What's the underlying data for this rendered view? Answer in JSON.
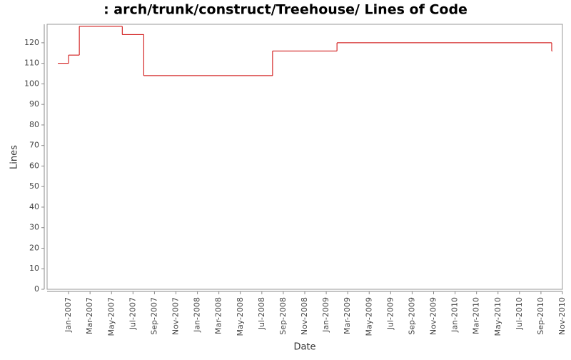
{
  "chart_data": {
    "type": "step",
    "title": ": arch/trunk/construct/Treehouse/ Lines of Code",
    "x_label": "Date",
    "y_label": "Lines",
    "x": [
      "2006-12",
      "2007-01",
      "2007-02",
      "2007-06",
      "2007-08",
      "2008-08",
      "2009-02",
      "2010-10"
    ],
    "series": [
      {
        "name": "Lines",
        "color": "#cc0000",
        "values": [
          110,
          114,
          128,
          124,
          104,
          116,
          120,
          116
        ]
      }
    ],
    "xlim": [
      "2006-11",
      "2010-11"
    ],
    "xticks": [
      {
        "value": "2007-01",
        "label": "Jan-2007"
      },
      {
        "value": "2007-03",
        "label": "Mar-2007"
      },
      {
        "value": "2007-05",
        "label": "May-2007"
      },
      {
        "value": "2007-07",
        "label": "Jul-2007"
      },
      {
        "value": "2007-09",
        "label": "Sep-2007"
      },
      {
        "value": "2007-11",
        "label": "Nov-2007"
      },
      {
        "value": "2008-01",
        "label": "Jan-2008"
      },
      {
        "value": "2008-03",
        "label": "Mar-2008"
      },
      {
        "value": "2008-05",
        "label": "May-2008"
      },
      {
        "value": "2008-07",
        "label": "Jul-2008"
      },
      {
        "value": "2008-09",
        "label": "Sep-2008"
      },
      {
        "value": "2008-11",
        "label": "Nov-2008"
      },
      {
        "value": "2009-01",
        "label": "Jan-2009"
      },
      {
        "value": "2009-03",
        "label": "Mar-2009"
      },
      {
        "value": "2009-05",
        "label": "May-2009"
      },
      {
        "value": "2009-07",
        "label": "Jul-2009"
      },
      {
        "value": "2009-09",
        "label": "Sep-2009"
      },
      {
        "value": "2009-11",
        "label": "Nov-2009"
      },
      {
        "value": "2010-01",
        "label": "Jan-2010"
      },
      {
        "value": "2010-03",
        "label": "Mar-2010"
      },
      {
        "value": "2010-05",
        "label": "May-2010"
      },
      {
        "value": "2010-07",
        "label": "Jul-2010"
      },
      {
        "value": "2010-09",
        "label": "Sep-2010"
      },
      {
        "value": "2010-11",
        "label": "Nov-2010"
      }
    ],
    "ylim": [
      0,
      129
    ],
    "yticks": [
      0,
      10,
      20,
      30,
      40,
      50,
      60,
      70,
      80,
      90,
      100,
      110,
      120
    ],
    "grid": false
  }
}
